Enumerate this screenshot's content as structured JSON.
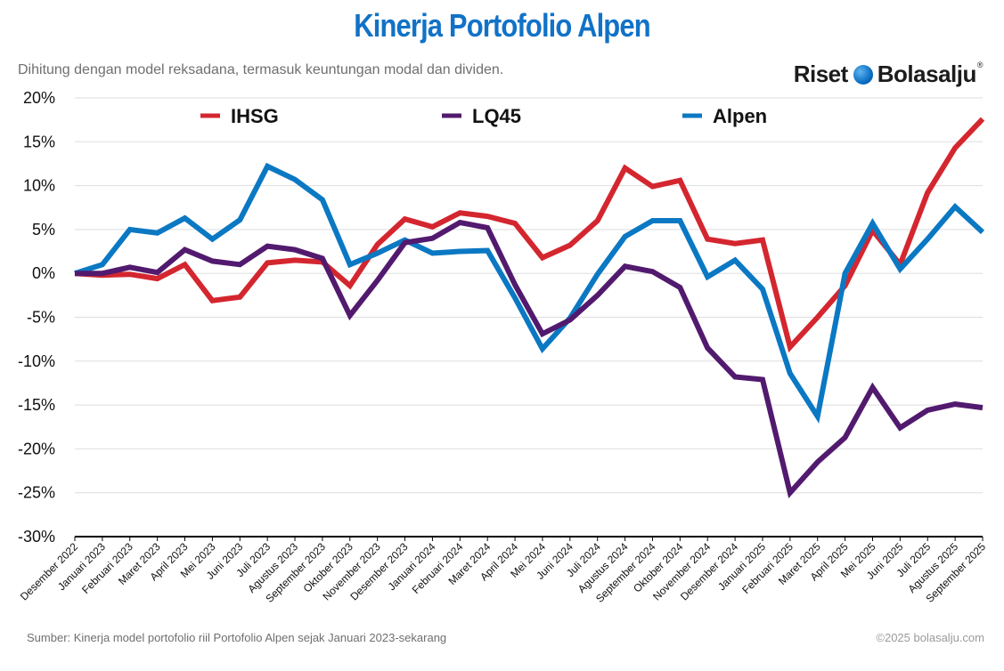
{
  "header": {
    "title": "Kinerja Portofolio Alpen",
    "subtitle": "Dihitung dengan model reksadana, termasuk keuntungan modal dan dividen.",
    "logo_word1": "Riset",
    "logo_word2": "Bolasalju",
    "logo_mark": "®"
  },
  "footer": {
    "source": "Sumber: Kinerja model portofolio riil Portofolio Alpen sejak Januari 2023-sekarang",
    "copyright": "©2025 bolasalju.com"
  },
  "colors": {
    "title": "#1172c7",
    "IHSG": "#d4262f",
    "LQ45": "#521a6e",
    "Alpen": "#0b78c3",
    "grid": "#dddddd",
    "axis": "#000000"
  },
  "chart_data": {
    "type": "line",
    "title": "Kinerja Portofolio Alpen",
    "xlabel": "",
    "ylabel": "",
    "ylim": [
      -30,
      20
    ],
    "yticks": [
      20,
      15,
      10,
      5,
      0,
      -5,
      -10,
      -15,
      -20,
      -25,
      -30
    ],
    "ytick_labels": [
      "20%",
      "15%",
      "10%",
      "5%",
      "0%",
      "-5%",
      "-10%",
      "-15%",
      "-20%",
      "-25%",
      "-30%"
    ],
    "grid": true,
    "legend": "top",
    "categories": [
      "Desember 2022",
      "Januari 2023",
      "Februari 2023",
      "Maret 2023",
      "April 2023",
      "Mei 2023",
      "Juni 2023",
      "Juli 2023",
      "Agustus 2023",
      "September 2023",
      "Oktober 2023",
      "November 2023",
      "Desember 2023",
      "Januari 2024",
      "Februari 2024",
      "Maret 2024",
      "April 2024",
      "Mei 2024",
      "Juni 2024",
      "Juli 2024",
      "Agustus 2024",
      "September 2024",
      "Oktober 2024",
      "November 2024",
      "Desember 2024",
      "Januari 2025",
      "Februari 2025",
      "Maret 2025",
      "April 2025",
      "Mei 2025",
      "Juni 2025",
      "Juli 2025",
      "Agustus 2025",
      "September 2025"
    ],
    "series": [
      {
        "name": "IHSG",
        "values": [
          0,
          -0.2,
          -0.1,
          -0.6,
          1.0,
          -3.1,
          -2.7,
          1.2,
          1.5,
          1.3,
          -1.4,
          3.3,
          6.2,
          5.3,
          6.9,
          6.5,
          5.7,
          1.8,
          3.2,
          6.0,
          12.0,
          9.9,
          10.6,
          3.9,
          3.4,
          3.8,
          -8.4,
          -5.0,
          -1.4,
          4.9,
          1.0,
          9.2,
          14.3,
          17.6
        ]
      },
      {
        "name": "LQ45",
        "values": [
          0,
          0,
          0.7,
          0.1,
          2.7,
          1.4,
          1.0,
          3.1,
          2.7,
          1.7,
          -4.8,
          -0.8,
          3.5,
          4.0,
          5.8,
          5.2,
          -1.3,
          -6.9,
          -5.3,
          -2.5,
          0.8,
          0.2,
          -1.6,
          -8.5,
          -11.8,
          -12.1,
          -25.0,
          -21.5,
          -18.7,
          -13.0,
          -17.6,
          -15.6,
          -14.9,
          -15.3
        ]
      },
      {
        "name": "Alpen",
        "values": [
          0,
          1.0,
          5.0,
          4.6,
          6.3,
          3.9,
          6.1,
          12.2,
          10.7,
          8.4,
          1.0,
          2.3,
          3.8,
          2.3,
          2.5,
          2.6,
          -2.8,
          -8.6,
          -5.1,
          -0.1,
          4.2,
          6.0,
          6.0,
          -0.4,
          1.5,
          -1.8,
          -11.4,
          -16.3,
          0,
          5.7,
          0.5,
          3.9,
          7.6,
          4.7
        ]
      }
    ]
  }
}
